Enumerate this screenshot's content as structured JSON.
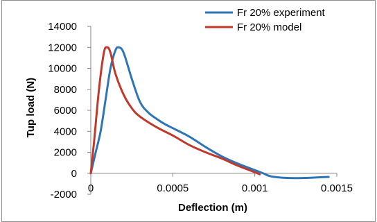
{
  "chart_data": {
    "type": "line",
    "title": "",
    "xlabel": "Deflection (m)",
    "ylabel": "Tup load (N)",
    "xlim": [
      0,
      0.0015
    ],
    "ylim": [
      -2000,
      14000
    ],
    "x_ticks": [
      0,
      0.0005,
      0.001,
      0.0015
    ],
    "x_tick_labels": [
      "0",
      "0.0005",
      "0.001",
      "0.0015"
    ],
    "y_ticks": [
      -2000,
      0,
      2000,
      4000,
      6000,
      8000,
      10000,
      12000,
      14000
    ],
    "y_tick_labels": [
      "-2000",
      "0",
      "2000",
      "4000",
      "6000",
      "8000",
      "10000",
      "12000",
      "14000"
    ],
    "grid": false,
    "legend_position": "top-right",
    "series": [
      {
        "name": "Fr 20% experiment",
        "color": "#2e75b6",
        "points": [
          [
            0,
            0
          ],
          [
            3e-05,
            2000
          ],
          [
            6e-05,
            4000
          ],
          [
            9e-05,
            7000
          ],
          [
            0.00012,
            10000
          ],
          [
            0.00015,
            11700
          ],
          [
            0.00017,
            12000
          ],
          [
            0.0002,
            11500
          ],
          [
            0.00025,
            9000
          ],
          [
            0.0003,
            6800
          ],
          [
            0.00035,
            5800
          ],
          [
            0.0004,
            5200
          ],
          [
            0.00045,
            4700
          ],
          [
            0.0005,
            4300
          ],
          [
            0.0006,
            3500
          ],
          [
            0.0007,
            2500
          ],
          [
            0.0008,
            1600
          ],
          [
            0.0009,
            900
          ],
          [
            0.001,
            300
          ],
          [
            0.00105,
            0
          ],
          [
            0.0011,
            -300
          ],
          [
            0.0012,
            -450
          ],
          [
            0.0013,
            -450
          ],
          [
            0.0014,
            -380
          ],
          [
            0.00145,
            -350
          ]
        ]
      },
      {
        "name": "Fr 20% model",
        "color": "#c0392b",
        "points": [
          [
            0,
            0
          ],
          [
            2e-05,
            3000
          ],
          [
            5e-05,
            8000
          ],
          [
            8e-05,
            11500
          ],
          [
            0.0001,
            12000
          ],
          [
            0.00012,
            11500
          ],
          [
            0.00015,
            9500
          ],
          [
            0.0002,
            7500
          ],
          [
            0.00025,
            6200
          ],
          [
            0.0003,
            5400
          ],
          [
            0.0004,
            4400
          ],
          [
            0.0005,
            3600
          ],
          [
            0.0006,
            2700
          ],
          [
            0.0007,
            2000
          ],
          [
            0.0008,
            1400
          ],
          [
            0.0009,
            700
          ],
          [
            0.001,
            100
          ],
          [
            0.00103,
            -100
          ]
        ]
      }
    ]
  }
}
